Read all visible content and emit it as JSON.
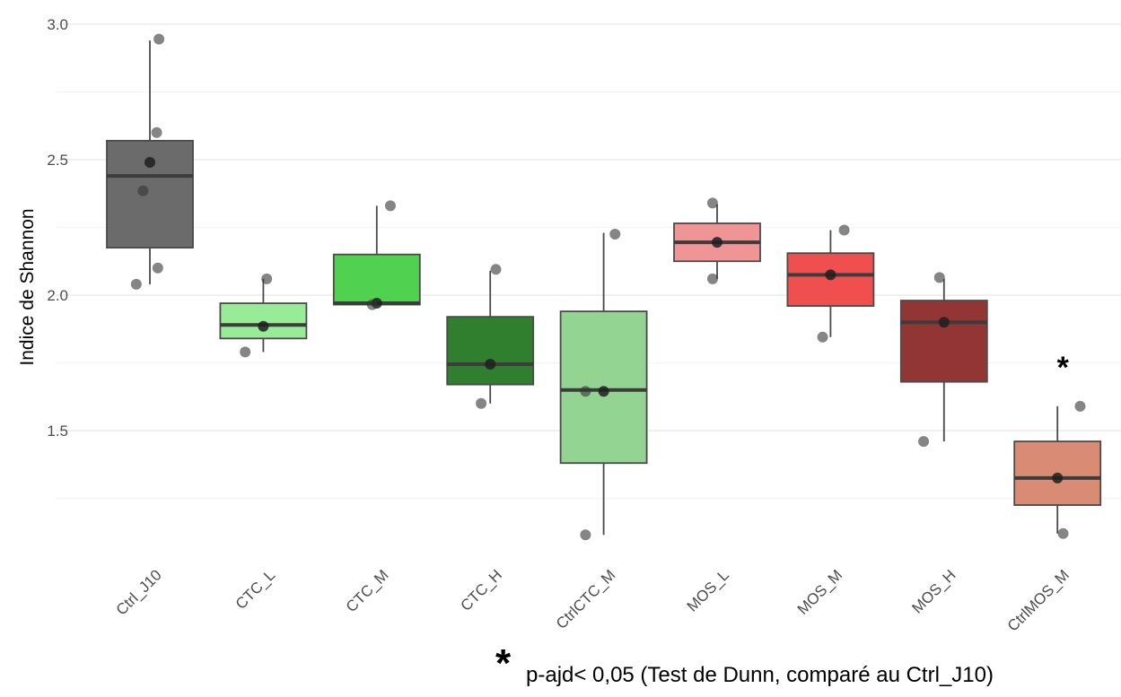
{
  "chart_data": {
    "type": "box",
    "ylabel": "Indice de Shannon",
    "xlabel": "",
    "ylim": [
      1.05,
      3.05
    ],
    "yticks": [
      1.5,
      2.0,
      2.5,
      3.0
    ],
    "ytick_labels": [
      "1.5",
      "2.0",
      "2.5",
      "3.0"
    ],
    "grid": true,
    "categories": [
      "Ctrl_J10",
      "CTC_L",
      "CTC_M",
      "CTC_H",
      "CtrlCTC_M",
      "MOS_L",
      "MOS_M",
      "MOS_H",
      "CtrlMOS_M"
    ],
    "colors": [
      "#6b6b6b",
      "#98ec98",
      "#50d150",
      "#2f7f2f",
      "#93d493",
      "#f09595",
      "#ef4f4f",
      "#933535",
      "#d98c73"
    ],
    "boxes": [
      {
        "q1": 2.175,
        "median": 2.44,
        "q3": 2.57,
        "whisker_low": 2.04,
        "whisker_high": 2.94,
        "mean": 2.49
      },
      {
        "q1": 1.84,
        "median": 1.89,
        "q3": 1.97,
        "whisker_low": 1.79,
        "whisker_high": 2.06,
        "mean": 1.885
      },
      {
        "q1": 1.965,
        "median": 1.97,
        "q3": 2.15,
        "whisker_low": 1.965,
        "whisker_high": 2.33,
        "mean": 1.97
      },
      {
        "q1": 1.67,
        "median": 1.745,
        "q3": 1.92,
        "whisker_low": 1.6,
        "whisker_high": 2.09,
        "mean": 1.745
      },
      {
        "q1": 1.38,
        "median": 1.65,
        "q3": 1.94,
        "whisker_low": 1.115,
        "whisker_high": 2.23,
        "mean": 1.645
      },
      {
        "q1": 2.125,
        "median": 2.195,
        "q3": 2.265,
        "whisker_low": 2.06,
        "whisker_high": 2.335,
        "mean": 2.195
      },
      {
        "q1": 1.96,
        "median": 2.075,
        "q3": 2.155,
        "whisker_low": 1.845,
        "whisker_high": 2.24,
        "mean": 2.075
      },
      {
        "q1": 1.68,
        "median": 1.9,
        "q3": 1.98,
        "whisker_low": 1.46,
        "whisker_high": 2.06,
        "mean": 1.9
      },
      {
        "q1": 1.225,
        "median": 1.325,
        "q3": 1.46,
        "whisker_low": 1.12,
        "whisker_high": 1.59,
        "mean": 1.325
      }
    ],
    "points": [
      {
        "category": "Ctrl_J10",
        "jitter": 0.08,
        "y": 2.945
      },
      {
        "category": "Ctrl_J10",
        "jitter": 0.06,
        "y": 2.6
      },
      {
        "category": "Ctrl_J10",
        "jitter": -0.06,
        "y": 2.385
      },
      {
        "category": "Ctrl_J10",
        "jitter": 0.07,
        "y": 2.1
      },
      {
        "category": "Ctrl_J10",
        "jitter": -0.12,
        "y": 2.04
      },
      {
        "category": "CTC_L",
        "jitter": 0.03,
        "y": 2.06
      },
      {
        "category": "CTC_L",
        "jitter": -0.16,
        "y": 1.79
      },
      {
        "category": "CTC_M",
        "jitter": 0.12,
        "y": 2.33
      },
      {
        "category": "CTC_M",
        "jitter": -0.04,
        "y": 1.965
      },
      {
        "category": "CTC_H",
        "jitter": 0.05,
        "y": 2.095
      },
      {
        "category": "CTC_H",
        "jitter": -0.08,
        "y": 1.6
      },
      {
        "category": "CtrlCTC_M",
        "jitter": 0.1,
        "y": 2.225
      },
      {
        "category": "CtrlCTC_M",
        "jitter": -0.16,
        "y": 1.645
      },
      {
        "category": "CtrlCTC_M",
        "jitter": -0.16,
        "y": 1.115
      },
      {
        "category": "MOS_L",
        "jitter": -0.04,
        "y": 2.34
      },
      {
        "category": "MOS_L",
        "jitter": -0.04,
        "y": 2.06
      },
      {
        "category": "MOS_M",
        "jitter": 0.12,
        "y": 2.24
      },
      {
        "category": "MOS_M",
        "jitter": -0.07,
        "y": 1.845
      },
      {
        "category": "MOS_H",
        "jitter": -0.04,
        "y": 2.065
      },
      {
        "category": "MOS_H",
        "jitter": -0.18,
        "y": 1.46
      },
      {
        "category": "CtrlMOS_M",
        "jitter": 0.2,
        "y": 1.59
      },
      {
        "category": "CtrlMOS_M",
        "jitter": 0.05,
        "y": 1.12
      }
    ],
    "annotations": [
      {
        "category": "CtrlMOS_M",
        "text": "*"
      }
    ]
  },
  "footnote": {
    "symbol": "*",
    "text": "p-ajd< 0,05 (Test de Dunn, comparé au Ctrl_J10)"
  }
}
